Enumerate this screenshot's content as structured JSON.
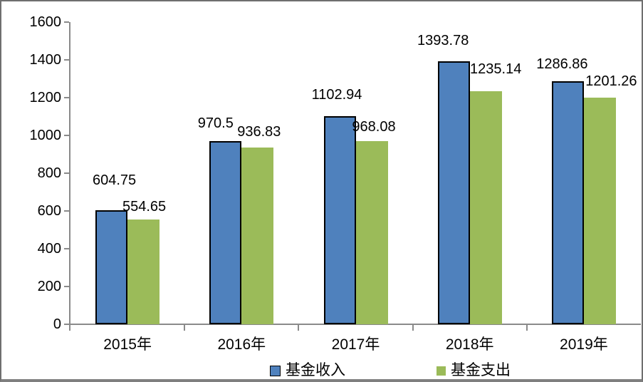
{
  "chart_data": {
    "type": "bar",
    "title": "",
    "categories": [
      "2015年",
      "2016年",
      "2017年",
      "2018年",
      "2019年"
    ],
    "series": [
      {
        "name": "基金收入",
        "color": "#4F81BD",
        "border_color": "#000000",
        "values": [
          604.75,
          970.5,
          1102.94,
          1393.78,
          1286.86
        ],
        "label_dx": [
          4,
          -14,
          -4,
          -15,
          -8
        ],
        "label_dy": [
          -42,
          -25,
          -30,
          -29,
          -24
        ]
      },
      {
        "name": "基金支出",
        "color": "#9BBB59",
        "border_color": "",
        "values": [
          554.65,
          936.83,
          968.08,
          1235.14,
          1201.26
        ],
        "label_dx": [
          1,
          2,
          3,
          14,
          16
        ],
        "label_dy": [
          -18,
          -22,
          -20,
          -31,
          -23
        ]
      }
    ],
    "ytick_labels": [
      "0",
      "200",
      "400",
      "600",
      "800",
      "1000",
      "1200",
      "1400",
      "1600"
    ],
    "ylim": [
      0,
      1600
    ],
    "ytick_step": 200,
    "grid": false,
    "plot_background": "#ffffff",
    "axis_color": "#8a8a8a",
    "label_color": "#000000",
    "legend_position": "bottom"
  }
}
